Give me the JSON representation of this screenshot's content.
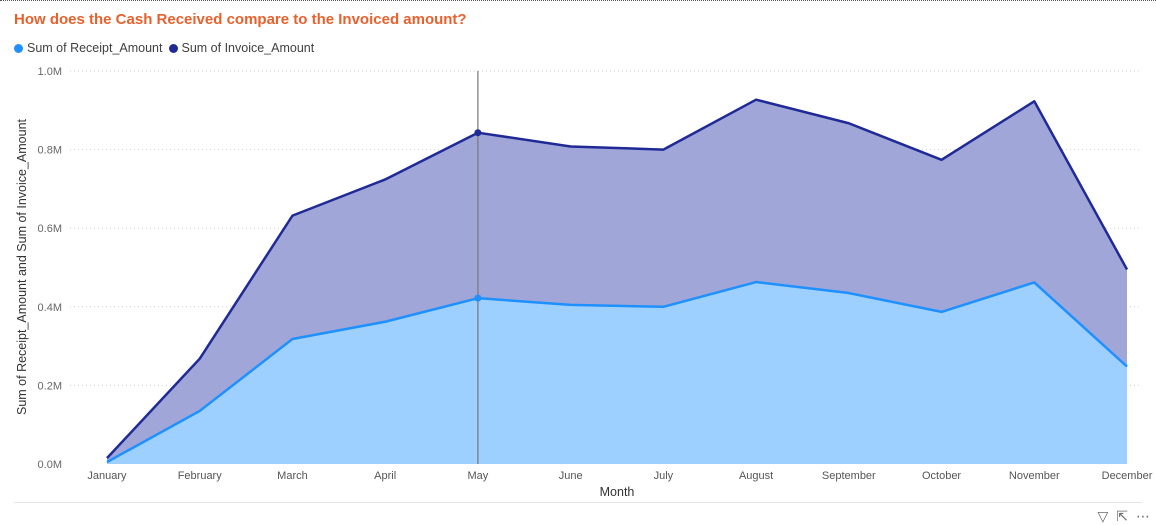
{
  "title": "How does the Cash Received compare to the Invoiced amount?",
  "legend": [
    {
      "label": "Sum of Receipt_Amount",
      "color": "#1e90ff"
    },
    {
      "label": "Sum of Invoice_Amount",
      "color": "#1f2a96"
    }
  ],
  "chart_data": {
    "type": "area",
    "categories": [
      "January",
      "February",
      "March",
      "April",
      "May",
      "June",
      "July",
      "August",
      "September",
      "October",
      "November",
      "December"
    ],
    "series": [
      {
        "name": "Sum of Receipt_Amount",
        "color": "#1e90ff",
        "fill": "#9ed0ff",
        "values": [
          5000,
          135000,
          318000,
          362000,
          422000,
          405000,
          400000,
          463000,
          435000,
          387000,
          462000,
          248000
        ]
      },
      {
        "name": "Sum of Invoice_Amount",
        "color": "#1f2a96",
        "fill": "#a0a6d8",
        "values": [
          15000,
          268000,
          632000,
          724000,
          843000,
          808000,
          800000,
          927000,
          867000,
          774000,
          923000,
          495000
        ]
      }
    ],
    "stacked": false,
    "ylim": [
      0,
      1000000
    ],
    "yticks": [
      {
        "value": 0,
        "label": "0.0M"
      },
      {
        "value": 200000,
        "label": "0.2M"
      },
      {
        "value": 400000,
        "label": "0.4M"
      },
      {
        "value": 600000,
        "label": "0.6M"
      },
      {
        "value": 800000,
        "label": "0.8M"
      },
      {
        "value": 1000000,
        "label": "1.0M"
      }
    ],
    "xlabel": "Month",
    "ylabel": "Sum of Receipt_Amount and Sum of Invoice_Amount",
    "highlight_category": "May",
    "grid": true,
    "legend_position": "top-left"
  }
}
